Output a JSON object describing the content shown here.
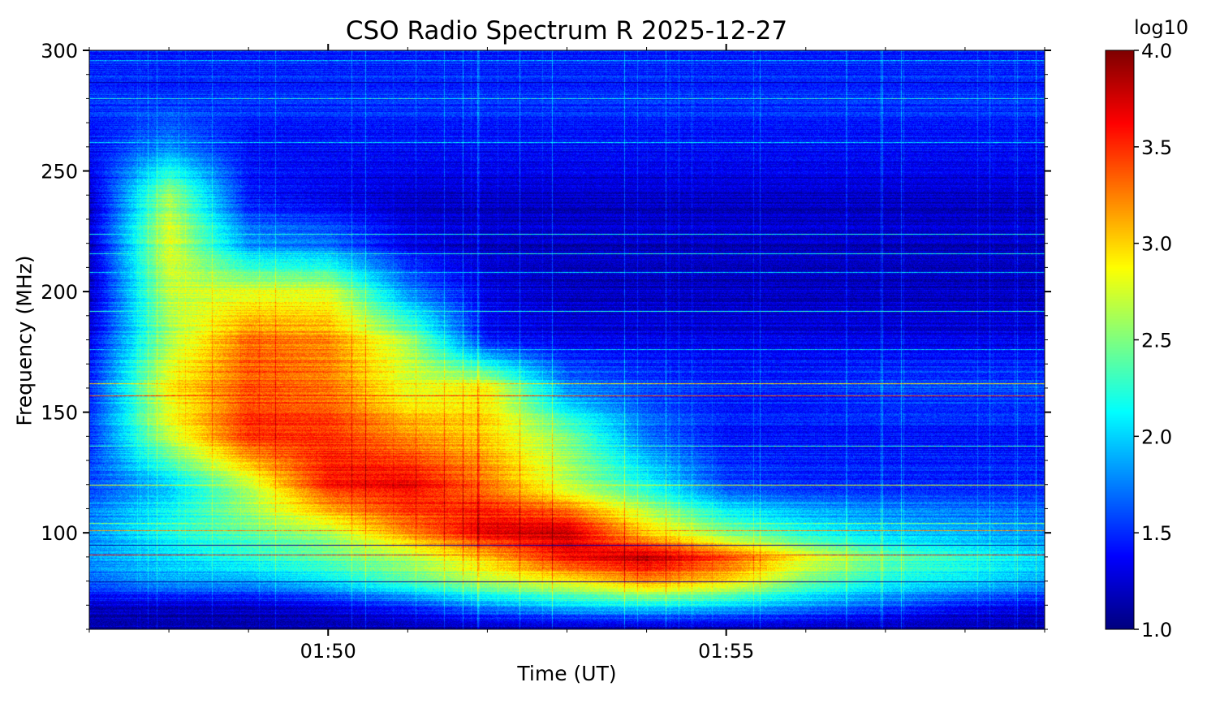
{
  "chart_data": {
    "type": "heatmap",
    "title": "CSO Radio Spectrum R 2025-12-27",
    "xlabel": "Time (UT)",
    "ylabel": "Frequency (MHz)",
    "xlim_minutes_after_0100": [
      47,
      59
    ],
    "ylim": [
      60,
      300
    ],
    "x_ticks": [
      {
        "value": 50,
        "label": "01:50"
      },
      {
        "value": 55,
        "label": "01:55"
      }
    ],
    "y_ticks": [
      {
        "value": 100,
        "label": "100"
      },
      {
        "value": 150,
        "label": "150"
      },
      {
        "value": 200,
        "label": "200"
      },
      {
        "value": 250,
        "label": "250"
      },
      {
        "value": 300,
        "label": "300"
      }
    ],
    "colorbar": {
      "label": "log10",
      "range": [
        1.0,
        4.0
      ],
      "colormap": "jet",
      "ticks": [
        "1.0",
        "1.5",
        "2.0",
        "2.5",
        "3.0",
        "3.5",
        "4.0"
      ]
    },
    "grid_times": [
      47,
      48,
      49,
      50,
      51,
      52,
      53,
      54,
      55,
      56,
      57,
      58,
      59
    ],
    "grid_freqs": [
      300,
      280,
      260,
      240,
      220,
      200,
      180,
      160,
      140,
      120,
      100,
      90,
      80,
      70,
      60
    ],
    "grid_values": [
      [
        1.5,
        1.5,
        1.5,
        1.5,
        1.5,
        1.5,
        1.5,
        1.5,
        1.5,
        1.5,
        1.5,
        1.5,
        1.5
      ],
      [
        1.5,
        1.5,
        1.5,
        1.5,
        1.5,
        1.5,
        1.5,
        1.5,
        1.5,
        1.5,
        1.5,
        1.5,
        1.5
      ],
      [
        1.4,
        1.8,
        1.4,
        1.4,
        1.4,
        1.4,
        1.4,
        1.4,
        1.4,
        1.4,
        1.4,
        1.4,
        1.4
      ],
      [
        1.2,
        2.6,
        1.4,
        1.3,
        1.2,
        1.2,
        1.2,
        1.2,
        1.2,
        1.2,
        1.2,
        1.2,
        1.2
      ],
      [
        1.2,
        2.8,
        1.8,
        1.7,
        1.3,
        1.2,
        1.2,
        1.2,
        1.2,
        1.2,
        1.2,
        1.2,
        1.2
      ],
      [
        1.2,
        2.7,
        2.8,
        2.8,
        1.8,
        1.3,
        1.2,
        1.2,
        1.2,
        1.2,
        1.2,
        1.2,
        1.2
      ],
      [
        1.3,
        2.6,
        3.3,
        3.2,
        2.6,
        1.4,
        1.3,
        1.3,
        1.3,
        1.3,
        1.3,
        1.3,
        1.3
      ],
      [
        1.5,
        2.9,
        3.4,
        3.3,
        2.8,
        2.9,
        1.8,
        1.6,
        1.5,
        1.5,
        1.6,
        1.6,
        1.6
      ],
      [
        1.5,
        2.7,
        3.5,
        3.5,
        3.2,
        3.0,
        2.5,
        1.7,
        1.4,
        1.4,
        1.4,
        1.4,
        1.4
      ],
      [
        1.6,
        2.0,
        2.7,
        3.6,
        3.7,
        3.3,
        2.7,
        2.2,
        1.6,
        1.5,
        1.5,
        1.5,
        1.5
      ],
      [
        1.8,
        2.2,
        2.4,
        2.6,
        3.2,
        3.7,
        3.8,
        3.0,
        2.5,
        2.2,
        2.0,
        1.9,
        1.8
      ],
      [
        1.8,
        2.0,
        2.2,
        2.4,
        2.6,
        3.0,
        3.6,
        3.8,
        3.4,
        2.8,
        2.4,
        2.2,
        2.0
      ],
      [
        1.7,
        1.9,
        1.9,
        2.1,
        2.4,
        2.7,
        2.9,
        3.2,
        3.0,
        2.5,
        2.2,
        2.1,
        1.9
      ],
      [
        1.2,
        1.2,
        1.2,
        1.3,
        1.5,
        1.8,
        2.0,
        2.1,
        2.0,
        1.8,
        1.6,
        1.4,
        1.3
      ],
      [
        1.1,
        1.1,
        1.1,
        1.1,
        1.1,
        1.1,
        1.1,
        1.1,
        1.1,
        1.1,
        1.1,
        1.1,
        1.1
      ]
    ],
    "rfi_lines": [
      {
        "freq": 296,
        "value": 1.9
      },
      {
        "freq": 287,
        "value": 1.1
      },
      {
        "freq": 280,
        "value": 2.2
      },
      {
        "freq": 262,
        "value": 2.0
      },
      {
        "freq": 224,
        "value": 2.2
      },
      {
        "freq": 216,
        "value": 2.2
      },
      {
        "freq": 208,
        "value": 2.0
      },
      {
        "freq": 192,
        "value": 2.2
      },
      {
        "freq": 176,
        "value": 2.0
      },
      {
        "freq": 162,
        "value": 3.0
      },
      {
        "freq": 157,
        "value": 3.5
      },
      {
        "freq": 136,
        "value": 2.3
      },
      {
        "freq": 120,
        "value": 2.8
      },
      {
        "freq": 104,
        "value": 2.5
      },
      {
        "freq": 101,
        "value": 3.2
      },
      {
        "freq": 95,
        "value": 1.1
      },
      {
        "freq": 91,
        "value": 3.5
      },
      {
        "freq": 80,
        "value": 1.1
      }
    ]
  }
}
